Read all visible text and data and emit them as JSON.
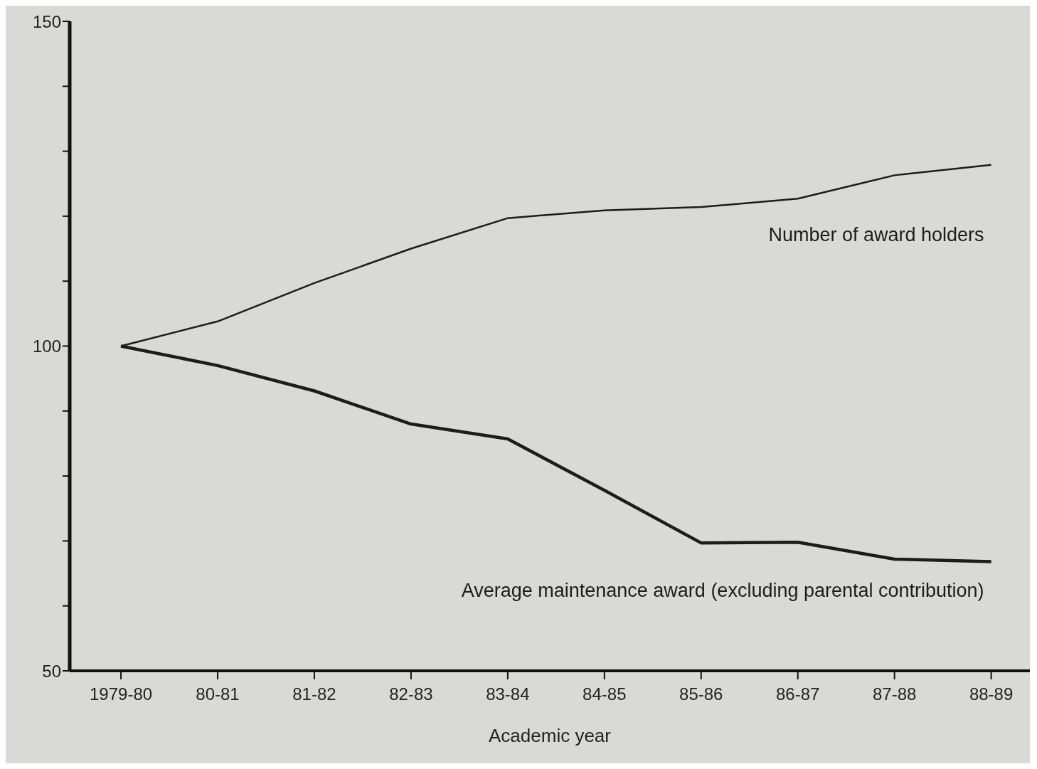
{
  "chart_data": {
    "type": "line",
    "xlabel": "Academic year",
    "categories": [
      "1979-80",
      "80-81",
      "81-82",
      "82-83",
      "83-84",
      "84-85",
      "85-86",
      "86-87",
      "87-88",
      "88-89"
    ],
    "series": [
      {
        "name": "Number of award holders",
        "color": "#1c1c1c",
        "values": [
          100,
          103.8,
          109.7,
          115,
          119.7,
          120.9,
          121.4,
          122.7,
          126.3,
          127.9
        ]
      },
      {
        "name": "Average maintenance award (excluding parental contribution)",
        "color": "#1c1c1c",
        "values": [
          100,
          97,
          93.1,
          88,
          85.7,
          77.8,
          69.7,
          69.8,
          67.2,
          66.8
        ]
      }
    ],
    "ylim": [
      50,
      150
    ],
    "yticks": [
      50,
      {
        "value": 60,
        "label": null
      },
      {
        "value": 70,
        "label": null
      },
      {
        "value": 80,
        "label": null
      },
      {
        "value": 90,
        "label": null
      },
      100,
      {
        "value": 110,
        "label": null
      },
      {
        "value": 120,
        "label": null
      },
      {
        "value": 130,
        "label": null
      },
      {
        "value": 140,
        "label": null
      },
      150
    ],
    "grid": false,
    "legend": false,
    "marker": "none",
    "line_style": "solid"
  }
}
